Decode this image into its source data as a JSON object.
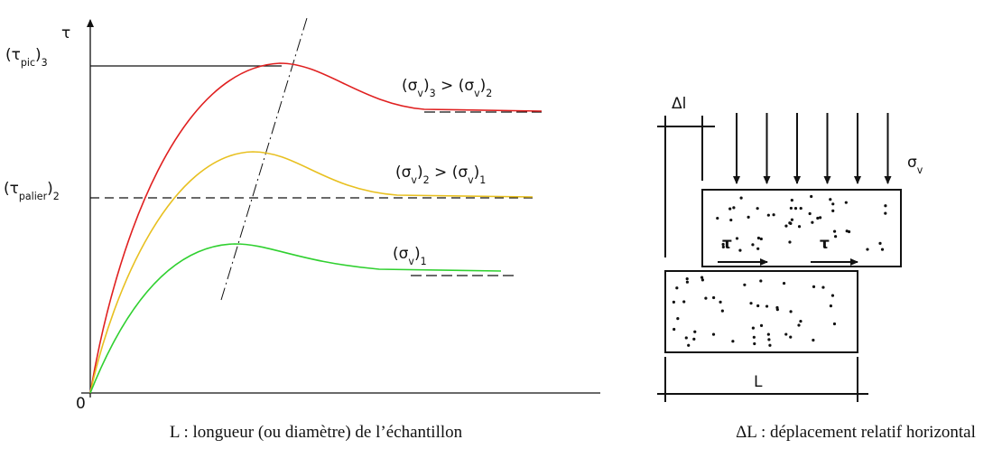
{
  "graph": {
    "y_axis_label": "τ",
    "origin": "0",
    "tau_pic": [
      "(τ",
      "pic",
      ")",
      "3"
    ],
    "tau_palier": [
      "(τ",
      "palier",
      ")",
      "2"
    ],
    "curve_3": [
      "(σ",
      "v",
      ")",
      "3",
      " > (σ",
      "v",
      ")",
      "2"
    ],
    "curve_2": [
      "(σ",
      "v",
      ")",
      "2",
      " > (σ",
      "v",
      ")",
      "1"
    ],
    "curve_1": [
      "(σ",
      "v",
      ")",
      "1"
    ]
  },
  "sample": {
    "delta_l": "Δl",
    "sigma": [
      "σ",
      "v"
    ],
    "tau_left": "τ",
    "tau_right": "τ",
    "length": "L"
  },
  "captions": {
    "left": "L : longueur (ou diamètre) de l’échantillon",
    "right": "ΔL : déplacement relatif horizontal"
  }
}
